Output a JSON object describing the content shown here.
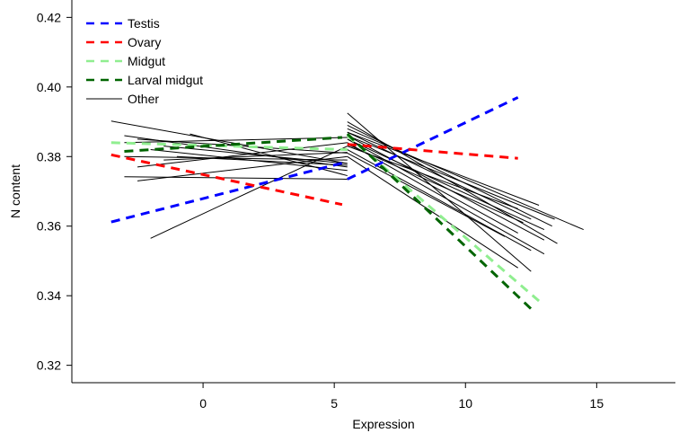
{
  "chart_data": {
    "type": "line",
    "xlabel": "Expression",
    "ylabel": "N content",
    "xlim": [
      -5,
      18
    ],
    "ylim": [
      0.315,
      0.425
    ],
    "xticks": [
      0,
      5,
      10,
      15
    ],
    "yticks": [
      0.32,
      0.34,
      0.36,
      0.38,
      0.4,
      0.42
    ],
    "ytick_labels": [
      "0.32",
      "0.34",
      "0.36",
      "0.38",
      "0.40",
      "0.42"
    ],
    "grid": false,
    "legend_position": "top-left",
    "series": [
      {
        "name": "Testis",
        "color": "#0000ff",
        "dashed": true,
        "width": 3,
        "segments": [
          [
            [
              -3.5,
              0.3612
            ],
            [
              5.5,
              0.3785
            ]
          ],
          [
            [
              5.5,
              0.3735
            ],
            [
              12.0,
              0.397
            ]
          ]
        ]
      },
      {
        "name": "Ovary",
        "color": "#ff0000",
        "dashed": true,
        "width": 3,
        "segments": [
          [
            [
              -3.5,
              0.3805
            ],
            [
              5.3,
              0.3662
            ]
          ],
          [
            [
              5.5,
              0.3835
            ],
            [
              12.0,
              0.3795
            ]
          ]
        ]
      },
      {
        "name": "Midgut",
        "color": "#90ee90",
        "dashed": true,
        "width": 3,
        "segments": [
          [
            [
              -3.5,
              0.384
            ],
            [
              5.5,
              0.382
            ]
          ],
          [
            [
              5.5,
              0.386
            ],
            [
              12.8,
              0.3385
            ]
          ]
        ]
      },
      {
        "name": "Larval midgut",
        "color": "#006400",
        "dashed": true,
        "width": 3,
        "segments": [
          [
            [
              -3.0,
              0.3815
            ],
            [
              5.3,
              0.3855
            ]
          ],
          [
            [
              5.5,
              0.3865
            ],
            [
              12.6,
              0.3355
            ]
          ]
        ]
      },
      {
        "name": "Other",
        "color": "#000000",
        "dashed": false,
        "width": 1,
        "segments": [
          [
            [
              -3.5,
              0.3902
            ],
            [
              5.5,
              0.378
            ]
          ],
          [
            [
              -3.0,
              0.386
            ],
            [
              5.5,
              0.377
            ]
          ],
          [
            [
              -2.5,
              0.385
            ],
            [
              5.5,
              0.381
            ]
          ],
          [
            [
              -3.0,
              0.38
            ],
            [
              5.5,
              0.379
            ]
          ],
          [
            [
              -3.0,
              0.3742
            ],
            [
              5.5,
              0.3735
            ]
          ],
          [
            [
              -2.5,
              0.377
            ],
            [
              5.5,
              0.384
            ]
          ],
          [
            [
              -2.0,
              0.382
            ],
            [
              5.5,
              0.376
            ]
          ],
          [
            [
              -2.0,
              0.3565
            ],
            [
              5.5,
              0.383
            ]
          ],
          [
            [
              -1.5,
              0.383
            ],
            [
              5.5,
              0.378
            ]
          ],
          [
            [
              -1.0,
              0.38
            ],
            [
              5.5,
              0.3775
            ]
          ],
          [
            [
              -2.5,
              0.373
            ],
            [
              5.5,
              0.38
            ]
          ],
          [
            [
              -0.5,
              0.3865
            ],
            [
              5.5,
              0.3745
            ]
          ],
          [
            [
              -3.0,
              0.384
            ],
            [
              5.5,
              0.3855
            ]
          ],
          [
            [
              -1.5,
              0.379
            ],
            [
              5.5,
              0.3812
            ]
          ],
          [
            [
              5.5,
              0.3925
            ],
            [
              12.5,
              0.347
            ]
          ],
          [
            [
              5.5,
              0.39
            ],
            [
              13.5,
              0.355
            ]
          ],
          [
            [
              5.5,
              0.388
            ],
            [
              14.5,
              0.359
            ]
          ],
          [
            [
              5.5,
              0.386
            ],
            [
              13.0,
              0.356
            ]
          ],
          [
            [
              5.5,
              0.385
            ],
            [
              12.0,
              0.358
            ]
          ],
          [
            [
              5.5,
              0.384
            ],
            [
              13.0,
              0.352
            ]
          ],
          [
            [
              5.5,
              0.383
            ],
            [
              12.0,
              0.365
            ]
          ],
          [
            [
              5.5,
              0.387
            ],
            [
              12.5,
              0.362
            ]
          ],
          [
            [
              5.5,
              0.381
            ],
            [
              11.5,
              0.357
            ]
          ],
          [
            [
              5.5,
              0.385
            ],
            [
              13.0,
              0.359
            ]
          ],
          [
            [
              5.5,
              0.382
            ],
            [
              12.5,
              0.353
            ]
          ],
          [
            [
              5.5,
              0.38
            ],
            [
              12.0,
              0.348
            ]
          ],
          [
            [
              5.5,
              0.389
            ],
            [
              13.3,
              0.36
            ]
          ],
          [
            [
              5.5,
              0.386
            ],
            [
              13.4,
              0.362
            ]
          ],
          [
            [
              5.5,
              0.387
            ],
            [
              12.8,
              0.366
            ]
          ],
          [
            [
              5.5,
              0.3835
            ],
            [
              12.2,
              0.361
            ]
          ]
        ]
      }
    ]
  }
}
